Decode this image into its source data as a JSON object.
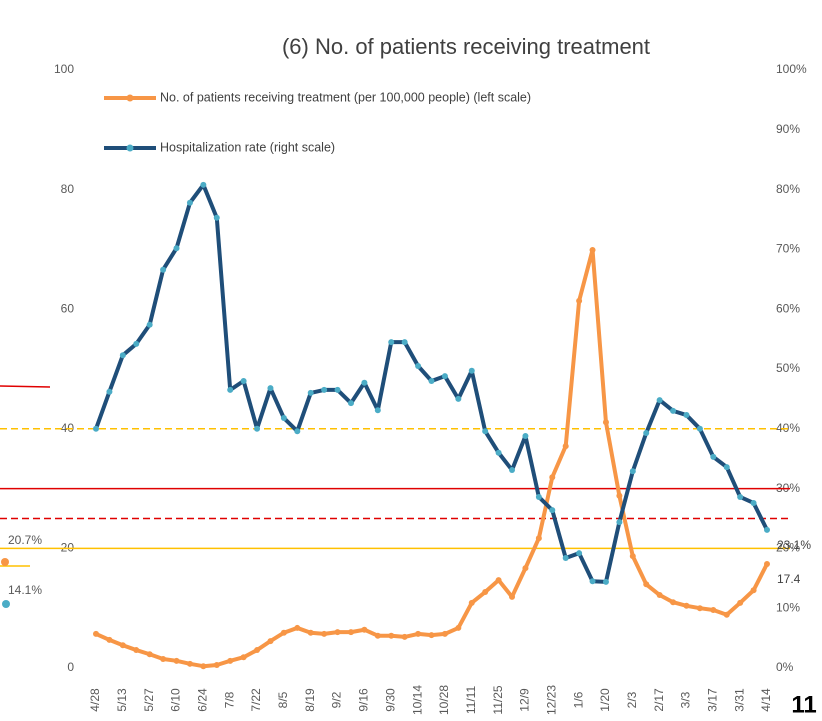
{
  "chart_data": {
    "type": "line",
    "title": "(6) No. of patients receiving treatment",
    "categories": [
      "4/28",
      null,
      "5/13",
      null,
      "5/27",
      null,
      "6/10",
      null,
      "6/24",
      null,
      "7/8",
      null,
      "7/22",
      null,
      "8/5",
      null,
      "8/19",
      null,
      "9/2",
      null,
      "9/16",
      null,
      "9/30",
      null,
      "10/14",
      null,
      "10/28",
      null,
      "11/11",
      null,
      "11/25",
      null,
      "12/9",
      null,
      "12/23",
      null,
      "1/6",
      null,
      "1/20",
      null,
      "2/3",
      null,
      "2/17",
      null,
      "3/3",
      null,
      "3/17",
      null,
      "3/31",
      null,
      "4/14"
    ],
    "series": [
      {
        "name": "No. of patients receiving treatment (per 100,000 people) (left scale)",
        "color": "#f79646",
        "marker_color": "#f79646",
        "values": [
          5.7,
          4.7,
          3.8,
          3.0,
          2.3,
          1.5,
          1.2,
          0.7,
          0.3,
          0.5,
          1.2,
          1.8,
          3.0,
          4.5,
          5.9,
          6.7,
          5.9,
          5.7,
          6.0,
          6.0,
          6.4,
          5.4,
          5.4,
          5.2,
          5.7,
          5.5,
          5.7,
          6.7,
          10.9,
          12.7,
          14.7,
          11.9,
          16.7,
          21.7,
          31.9,
          37.1,
          61.4,
          69.9,
          41.1,
          28.8,
          18.7,
          14.0,
          12.2,
          11.0,
          10.4,
          10.0,
          9.7,
          8.9,
          10.9,
          13.0,
          17.4
        ]
      },
      {
        "name": "Hospitalization rate (right scale)",
        "color": "#1f4e79",
        "marker_color": "#4bacc6",
        "axis": "y2",
        "values": [
          40.0,
          46.2,
          52.3,
          54.2,
          57.4,
          66.6,
          70.2,
          77.8,
          80.8,
          75.3,
          46.5,
          48.0,
          40.0,
          46.8,
          41.8,
          39.6,
          46.0,
          46.5,
          46.5,
          44.3,
          47.7,
          43.1,
          54.5,
          54.5,
          50.5,
          48.0,
          48.8,
          45.0,
          49.7,
          39.6,
          36.0,
          33.1,
          38.8,
          28.6,
          26.4,
          18.4,
          19.2,
          14.5,
          14.4,
          24.4,
          32.9,
          39.3,
          44.8,
          43.0,
          42.3,
          40.0,
          35.3,
          33.6,
          28.6,
          27.6,
          23.1
        ],
        "value_labels": [
          null,
          null,
          null,
          null,
          null,
          null,
          null,
          null,
          null,
          null,
          null,
          null,
          null,
          null,
          null,
          null,
          null,
          null,
          null,
          null,
          null,
          null,
          null,
          null,
          null,
          null,
          null,
          null,
          null,
          null,
          null,
          null,
          null,
          null,
          null,
          null,
          null,
          null,
          null,
          null,
          null,
          null,
          null,
          null,
          null,
          null,
          null,
          null,
          null,
          null,
          "23.1%"
        ]
      }
    ],
    "ylim": [
      0,
      100
    ],
    "yticks": [
      0,
      20,
      40,
      60,
      80,
      100
    ],
    "y2lim": [
      0,
      100
    ],
    "y2ticks": [
      {
        "value": 0,
        "label": "0%"
      },
      {
        "value": 10,
        "label": "10%"
      },
      {
        "value": 20,
        "label": "20%"
      },
      {
        "value": 30,
        "label": "30%"
      },
      {
        "value": 40,
        "label": "40%"
      },
      {
        "value": 50,
        "label": "50%"
      },
      {
        "value": 60,
        "label": "60%"
      },
      {
        "value": 70,
        "label": "70%"
      },
      {
        "value": 80,
        "label": "80%"
      },
      {
        "value": 90,
        "label": "90%"
      },
      {
        "value": 100,
        "label": "100%"
      }
    ],
    "reference_lines": [
      {
        "value": 40,
        "color": "#ffc000",
        "dashed": true
      },
      {
        "value": 30,
        "color": "#e00000",
        "dashed": false
      },
      {
        "value": 25,
        "color": "#e00000",
        "dashed": true
      },
      {
        "value": 20,
        "color": "#ffc000",
        "dashed": false
      }
    ],
    "legend": "top-left",
    "grid": false
  },
  "fragments": {
    "left_labels": [
      "20.7%",
      "14.1%"
    ],
    "page_number": "11"
  }
}
